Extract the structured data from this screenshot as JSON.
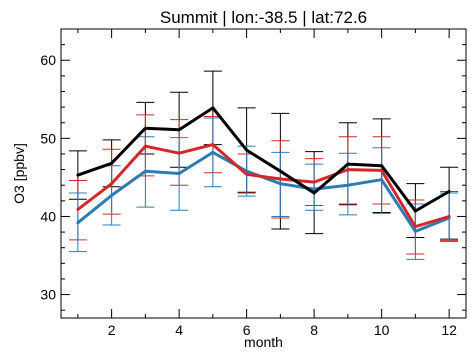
{
  "chart_data": {
    "type": "line",
    "title": "Summit | lon:-38.5 | lat:72.6",
    "xlabel": "month",
    "ylabel": "O3 [ppbv]",
    "xlim": [
      0.5,
      12.5
    ],
    "ylim": [
      27,
      64
    ],
    "xticks": [
      2,
      4,
      6,
      8,
      10,
      12
    ],
    "yticks": [
      30,
      40,
      50,
      60
    ],
    "grid": false,
    "x": [
      1,
      2,
      3,
      4,
      5,
      6,
      7,
      8,
      9,
      10,
      11,
      12
    ],
    "series": [
      {
        "color": "#000000",
        "values": [
          45.3,
          46.8,
          51.3,
          51.1,
          53.9,
          48.5,
          45.8,
          43.0,
          46.7,
          46.5,
          40.7,
          43.2
        ],
        "err_low": [
          42.2,
          43.8,
          48.0,
          46.3,
          49.2,
          43.1,
          38.4,
          37.8,
          41.5,
          40.5,
          37.3,
          37.1
        ],
        "err_high": [
          48.4,
          49.8,
          54.6,
          55.9,
          58.6,
          53.9,
          53.2,
          48.3,
          52.0,
          52.5,
          44.2,
          46.3
        ]
      },
      {
        "color": "#d62728",
        "values": [
          40.9,
          44.2,
          49.0,
          48.1,
          49.2,
          45.4,
          44.8,
          44.4,
          46.0,
          45.9,
          38.7,
          40.0
        ],
        "err_low": [
          37.0,
          40.3,
          45.2,
          44.0,
          45.6,
          43.0,
          39.8,
          41.4,
          41.6,
          41.6,
          35.2,
          36.9
        ],
        "err_high": [
          44.6,
          48.6,
          53.0,
          52.4,
          52.8,
          48.0,
          49.7,
          47.4,
          50.2,
          50.2,
          42.1,
          43.2
        ]
      },
      {
        "color": "#2c7bb6",
        "values": [
          39.2,
          42.7,
          45.8,
          45.5,
          48.2,
          45.8,
          44.2,
          43.5,
          44.0,
          44.7,
          38.1,
          39.8
        ],
        "err_low": [
          35.5,
          38.9,
          41.2,
          40.8,
          43.8,
          42.6,
          40.0,
          40.8,
          40.2,
          40.4,
          34.5,
          36.8
        ],
        "err_high": [
          43.0,
          46.5,
          50.2,
          50.1,
          52.6,
          49.0,
          48.2,
          46.7,
          48.1,
          48.8,
          41.6,
          43.0
        ]
      }
    ]
  }
}
